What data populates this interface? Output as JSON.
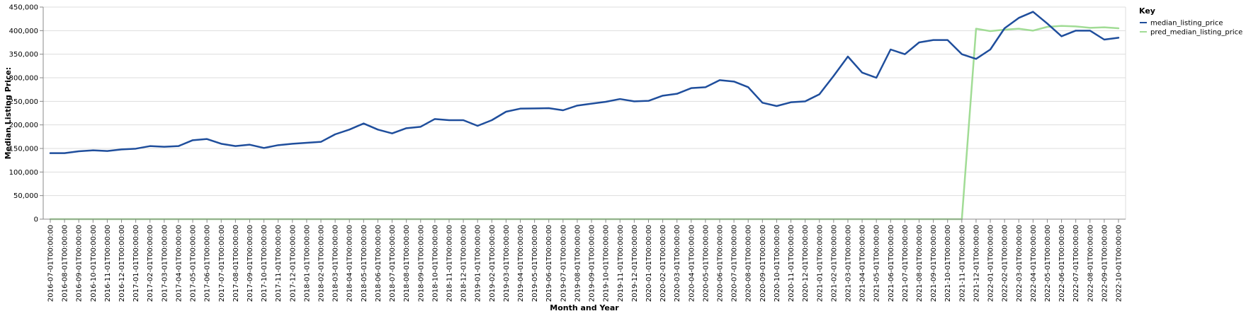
{
  "chart_data": {
    "type": "line",
    "xlabel": "Month and Year",
    "ylabel": "Median Listing Price:",
    "ylim": [
      0,
      450000
    ],
    "yticks": [
      0,
      50000,
      100000,
      150000,
      200000,
      250000,
      300000,
      350000,
      400000,
      450000
    ],
    "grid": true,
    "legend": {
      "title": "Key",
      "placement": "right"
    },
    "categories": [
      "2016-07-01T00:00:00",
      "2016-08-01T00:00:00",
      "2016-09-01T00:00:00",
      "2016-10-01T00:00:00",
      "2016-11-01T00:00:00",
      "2016-12-01T00:00:00",
      "2017-01-01T00:00:00",
      "2017-02-01T00:00:00",
      "2017-03-01T00:00:00",
      "2017-04-01T00:00:00",
      "2017-05-01T00:00:00",
      "2017-06-01T00:00:00",
      "2017-07-01T00:00:00",
      "2017-08-01T00:00:00",
      "2017-09-01T00:00:00",
      "2017-10-01T00:00:00",
      "2017-11-01T00:00:00",
      "2017-12-01T00:00:00",
      "2018-01-01T00:00:00",
      "2018-02-01T00:00:00",
      "2018-03-01T00:00:00",
      "2018-04-01T00:00:00",
      "2018-05-01T00:00:00",
      "2018-06-01T00:00:00",
      "2018-07-01T00:00:00",
      "2018-08-01T00:00:00",
      "2018-09-01T00:00:00",
      "2018-10-01T00:00:00",
      "2018-11-01T00:00:00",
      "2018-12-01T00:00:00",
      "2019-01-01T00:00:00",
      "2019-02-01T00:00:00",
      "2019-03-01T00:00:00",
      "2019-04-01T00:00:00",
      "2019-05-01T00:00:00",
      "2019-06-01T00:00:00",
      "2019-07-01T00:00:00",
      "2019-08-01T00:00:00",
      "2019-09-01T00:00:00",
      "2019-10-01T00:00:00",
      "2019-11-01T00:00:00",
      "2019-12-01T00:00:00",
      "2020-01-01T00:00:00",
      "2020-02-01T00:00:00",
      "2020-03-01T00:00:00",
      "2020-04-01T00:00:00",
      "2020-05-01T00:00:00",
      "2020-06-01T00:00:00",
      "2020-07-01T00:00:00",
      "2020-08-01T00:00:00",
      "2020-09-01T00:00:00",
      "2020-10-01T00:00:00",
      "2020-11-01T00:00:00",
      "2020-12-01T00:00:00",
      "2021-01-01T00:00:00",
      "2021-02-01T00:00:00",
      "2021-03-01T00:00:00",
      "2021-04-01T00:00:00",
      "2021-05-01T00:00:00",
      "2021-06-01T00:00:00",
      "2021-07-01T00:00:00",
      "2021-08-01T00:00:00",
      "2021-09-01T00:00:00",
      "2021-10-01T00:00:00",
      "2021-11-01T00:00:00",
      "2021-12-01T00:00:00",
      "2022-01-01T00:00:00",
      "2022-02-01T00:00:00",
      "2022-03-01T00:00:00",
      "2022-04-01T00:00:00",
      "2022-05-01T00:00:00",
      "2022-06-01T00:00:00",
      "2022-07-01T00:00:00",
      "2022-08-01T00:00:00",
      "2022-09-01T00:00:00",
      "2022-10-01T00:00:00"
    ],
    "series": [
      {
        "name": "median_listing_price",
        "color": "#1f4e9c",
        "values": [
          140000,
          140000,
          144000,
          146000,
          144500,
          148000,
          149500,
          155000,
          153500,
          155000,
          167500,
          170000,
          160000,
          155000,
          158000,
          151000,
          157000,
          160000,
          162000,
          164000,
          180000,
          190000,
          203000,
          190000,
          182000,
          193000,
          196000,
          212500,
          210000,
          210000,
          198000,
          210000,
          228000,
          234500,
          235000,
          235500,
          231000,
          241000,
          245000,
          249000,
          254900,
          250000,
          251000,
          262000,
          266000,
          278000,
          280000,
          295000,
          292000,
          280000,
          247000,
          240000,
          248000,
          250000,
          265000,
          304000,
          345000,
          311000,
          300000,
          360000,
          350000,
          375000,
          380000,
          380000,
          350000,
          340000,
          360000,
          405000,
          427000,
          440000,
          415000,
          388000,
          400000,
          400000,
          381000,
          385000
        ]
      },
      {
        "name": "pred_median_listing_price",
        "color": "#a1dc95",
        "values": [
          0,
          0,
          0,
          0,
          0,
          0,
          0,
          0,
          0,
          0,
          0,
          0,
          0,
          0,
          0,
          0,
          0,
          0,
          0,
          0,
          0,
          0,
          0,
          0,
          0,
          0,
          0,
          0,
          0,
          0,
          0,
          0,
          0,
          0,
          0,
          0,
          0,
          0,
          0,
          0,
          0,
          0,
          0,
          0,
          0,
          0,
          0,
          0,
          0,
          0,
          0,
          0,
          0,
          0,
          0,
          0,
          0,
          0,
          0,
          0,
          0,
          0,
          0,
          0,
          0,
          404000,
          399000,
          402000,
          404000,
          400000,
          408000,
          410000,
          409000,
          406000,
          407000,
          405000
        ]
      }
    ],
    "colors": {
      "grid": "#dddddd",
      "axis": "#888888"
    }
  }
}
